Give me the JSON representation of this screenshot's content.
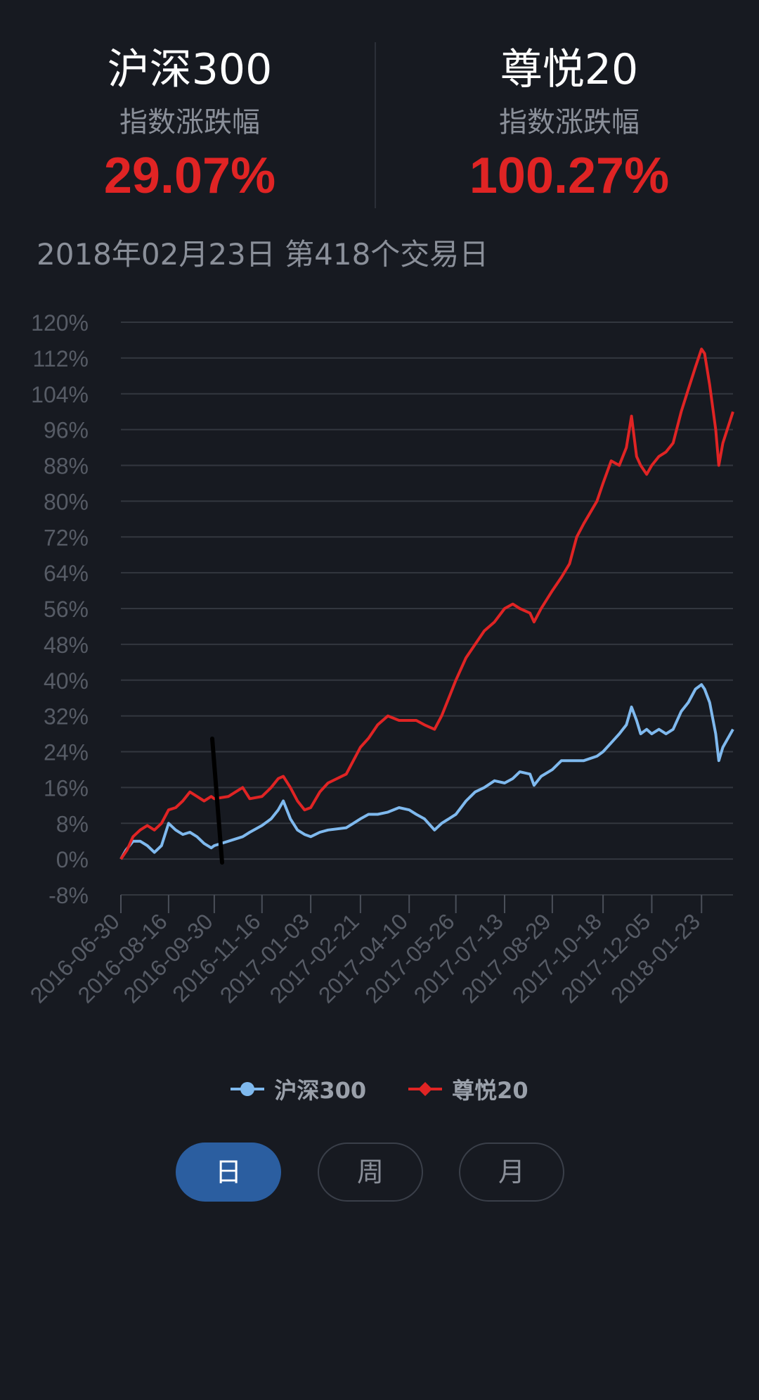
{
  "stats": [
    {
      "name": "沪深300",
      "sub": "指数涨跌幅",
      "value": "29.07%"
    },
    {
      "name": "尊悦20",
      "sub": "指数涨跌幅",
      "value": "100.27%"
    }
  ],
  "date_line": "2018年02月23日 第418个交易日",
  "legend": [
    {
      "label": "沪深300",
      "color": "#7fb9ee",
      "icon": "circle-line-icon"
    },
    {
      "label": "尊悦20",
      "color": "#e02424",
      "icon": "diamond-line-icon"
    }
  ],
  "periods": [
    {
      "label": "日",
      "active": true
    },
    {
      "label": "周",
      "active": false
    },
    {
      "label": "月",
      "active": false
    }
  ],
  "chart_data": {
    "type": "line",
    "x_tick_labels": [
      "2016-06-30",
      "2016-08-16",
      "2016-09-30",
      "2016-11-16",
      "2017-01-03",
      "2017-02-21",
      "2017-04-10",
      "2017-05-26",
      "2017-07-13",
      "2017-08-29",
      "2017-10-18",
      "2017-12-05",
      "2018-01-23"
    ],
    "y_tick_labels": [
      "120%",
      "112%",
      "104%",
      "96%",
      "88%",
      "80%",
      "72%",
      "64%",
      "56%",
      "48%",
      "40%",
      "32%",
      "24%",
      "16%",
      "8%",
      "0%",
      "-8%"
    ],
    "ylim": [
      -8,
      120
    ],
    "grid": true,
    "legend_position": "bottom",
    "series": [
      {
        "name": "沪深300",
        "color": "#7fb9ee",
        "points": [
          [
            "2016-06-30",
            0
          ],
          [
            "2016-07-05",
            2
          ],
          [
            "2016-07-12",
            4
          ],
          [
            "2016-07-19",
            4
          ],
          [
            "2016-07-26",
            3
          ],
          [
            "2016-08-02",
            1.5
          ],
          [
            "2016-08-09",
            3
          ],
          [
            "2016-08-16",
            8
          ],
          [
            "2016-08-23",
            6.5
          ],
          [
            "2016-08-30",
            5.5
          ],
          [
            "2016-09-06",
            6
          ],
          [
            "2016-09-13",
            5
          ],
          [
            "2016-09-20",
            3.5
          ],
          [
            "2016-09-27",
            2.5
          ],
          [
            "2016-09-30",
            3
          ],
          [
            "2016-10-14",
            4
          ],
          [
            "2016-10-28",
            5
          ],
          [
            "2016-11-04",
            6
          ],
          [
            "2016-11-16",
            7.5
          ],
          [
            "2016-11-25",
            9
          ],
          [
            "2016-12-02",
            11
          ],
          [
            "2016-12-07",
            13
          ],
          [
            "2016-12-14",
            9
          ],
          [
            "2016-12-21",
            6.5
          ],
          [
            "2016-12-28",
            5.5
          ],
          [
            "2017-01-03",
            5
          ],
          [
            "2017-01-12",
            6
          ],
          [
            "2017-01-20",
            6.5
          ],
          [
            "2017-02-07",
            7
          ],
          [
            "2017-02-14",
            8
          ],
          [
            "2017-02-21",
            9
          ],
          [
            "2017-03-01",
            10
          ],
          [
            "2017-03-10",
            10
          ],
          [
            "2017-03-20",
            10.5
          ],
          [
            "2017-03-31",
            11.5
          ],
          [
            "2017-04-10",
            11
          ],
          [
            "2017-04-17",
            10
          ],
          [
            "2017-04-25",
            9
          ],
          [
            "2017-05-05",
            6.5
          ],
          [
            "2017-05-12",
            8
          ],
          [
            "2017-05-19",
            9
          ],
          [
            "2017-05-26",
            10
          ],
          [
            "2017-06-05",
            13
          ],
          [
            "2017-06-14",
            15
          ],
          [
            "2017-06-23",
            16
          ],
          [
            "2017-07-03",
            17.5
          ],
          [
            "2017-07-13",
            17
          ],
          [
            "2017-07-21",
            18
          ],
          [
            "2017-07-28",
            19.5
          ],
          [
            "2017-08-07",
            19
          ],
          [
            "2017-08-11",
            16.5
          ],
          [
            "2017-08-18",
            18.5
          ],
          [
            "2017-08-29",
            20
          ],
          [
            "2017-09-07",
            22
          ],
          [
            "2017-09-15",
            22
          ],
          [
            "2017-09-22",
            22
          ],
          [
            "2017-09-29",
            22
          ],
          [
            "2017-10-12",
            23
          ],
          [
            "2017-10-18",
            24
          ],
          [
            "2017-10-26",
            26
          ],
          [
            "2017-11-03",
            28
          ],
          [
            "2017-11-10",
            30
          ],
          [
            "2017-11-15",
            34
          ],
          [
            "2017-11-20",
            31
          ],
          [
            "2017-11-24",
            28
          ],
          [
            "2017-11-30",
            29
          ],
          [
            "2017-12-05",
            28
          ],
          [
            "2017-12-12",
            29
          ],
          [
            "2017-12-19",
            28
          ],
          [
            "2017-12-26",
            29
          ],
          [
            "2018-01-03",
            33
          ],
          [
            "2018-01-10",
            35
          ],
          [
            "2018-01-17",
            38
          ],
          [
            "2018-01-23",
            39
          ],
          [
            "2018-01-26",
            38
          ],
          [
            "2018-01-31",
            35
          ],
          [
            "2018-02-06",
            28
          ],
          [
            "2018-02-09",
            22
          ],
          [
            "2018-02-13",
            25
          ],
          [
            "2018-02-23",
            29
          ]
        ]
      },
      {
        "name": "尊悦20",
        "color": "#e02424",
        "points": [
          [
            "2016-06-30",
            0
          ],
          [
            "2016-07-06",
            2
          ],
          [
            "2016-07-12",
            5
          ],
          [
            "2016-07-19",
            6.5
          ],
          [
            "2016-07-26",
            7.5
          ],
          [
            "2016-08-02",
            6.5
          ],
          [
            "2016-08-09",
            8
          ],
          [
            "2016-08-16",
            11
          ],
          [
            "2016-08-23",
            11.5
          ],
          [
            "2016-08-30",
            13
          ],
          [
            "2016-09-06",
            15
          ],
          [
            "2016-09-13",
            14
          ],
          [
            "2016-09-20",
            13
          ],
          [
            "2016-09-27",
            14
          ],
          [
            "2016-09-30",
            13.5
          ],
          [
            "2016-10-14",
            14
          ],
          [
            "2016-10-21",
            15
          ],
          [
            "2016-10-28",
            16
          ],
          [
            "2016-11-04",
            13.5
          ],
          [
            "2016-11-16",
            14
          ],
          [
            "2016-11-25",
            16
          ],
          [
            "2016-12-02",
            18
          ],
          [
            "2016-12-07",
            18.5
          ],
          [
            "2016-12-14",
            16
          ],
          [
            "2016-12-21",
            13
          ],
          [
            "2016-12-28",
            11
          ],
          [
            "2017-01-03",
            11.5
          ],
          [
            "2017-01-12",
            15
          ],
          [
            "2017-01-20",
            17
          ],
          [
            "2017-02-07",
            19
          ],
          [
            "2017-02-14",
            22
          ],
          [
            "2017-02-21",
            25
          ],
          [
            "2017-03-01",
            27
          ],
          [
            "2017-03-10",
            30
          ],
          [
            "2017-03-20",
            32
          ],
          [
            "2017-03-31",
            31
          ],
          [
            "2017-04-10",
            31
          ],
          [
            "2017-04-17",
            31
          ],
          [
            "2017-04-25",
            30
          ],
          [
            "2017-05-05",
            29
          ],
          [
            "2017-05-12",
            32
          ],
          [
            "2017-05-19",
            36
          ],
          [
            "2017-05-26",
            40
          ],
          [
            "2017-06-05",
            45
          ],
          [
            "2017-06-14",
            48
          ],
          [
            "2017-06-23",
            51
          ],
          [
            "2017-07-03",
            53
          ],
          [
            "2017-07-13",
            56
          ],
          [
            "2017-07-21",
            57
          ],
          [
            "2017-07-28",
            56
          ],
          [
            "2017-08-07",
            55
          ],
          [
            "2017-08-11",
            53
          ],
          [
            "2017-08-18",
            56
          ],
          [
            "2017-08-29",
            60
          ],
          [
            "2017-09-07",
            63
          ],
          [
            "2017-09-15",
            66
          ],
          [
            "2017-09-22",
            72
          ],
          [
            "2017-09-29",
            75
          ],
          [
            "2017-10-12",
            80
          ],
          [
            "2017-10-18",
            84
          ],
          [
            "2017-10-26",
            89
          ],
          [
            "2017-11-03",
            88
          ],
          [
            "2017-11-10",
            92
          ],
          [
            "2017-11-15",
            99
          ],
          [
            "2017-11-20",
            90
          ],
          [
            "2017-11-24",
            88
          ],
          [
            "2017-11-30",
            86
          ],
          [
            "2017-12-05",
            88
          ],
          [
            "2017-12-12",
            90
          ],
          [
            "2017-12-19",
            91
          ],
          [
            "2017-12-26",
            93
          ],
          [
            "2018-01-03",
            100
          ],
          [
            "2018-01-10",
            105
          ],
          [
            "2018-01-17",
            110
          ],
          [
            "2018-01-23",
            114
          ],
          [
            "2018-01-26",
            113
          ],
          [
            "2018-01-31",
            106
          ],
          [
            "2018-02-06",
            96
          ],
          [
            "2018-02-09",
            88
          ],
          [
            "2018-02-13",
            93
          ],
          [
            "2018-02-23",
            100
          ]
        ]
      }
    ]
  }
}
